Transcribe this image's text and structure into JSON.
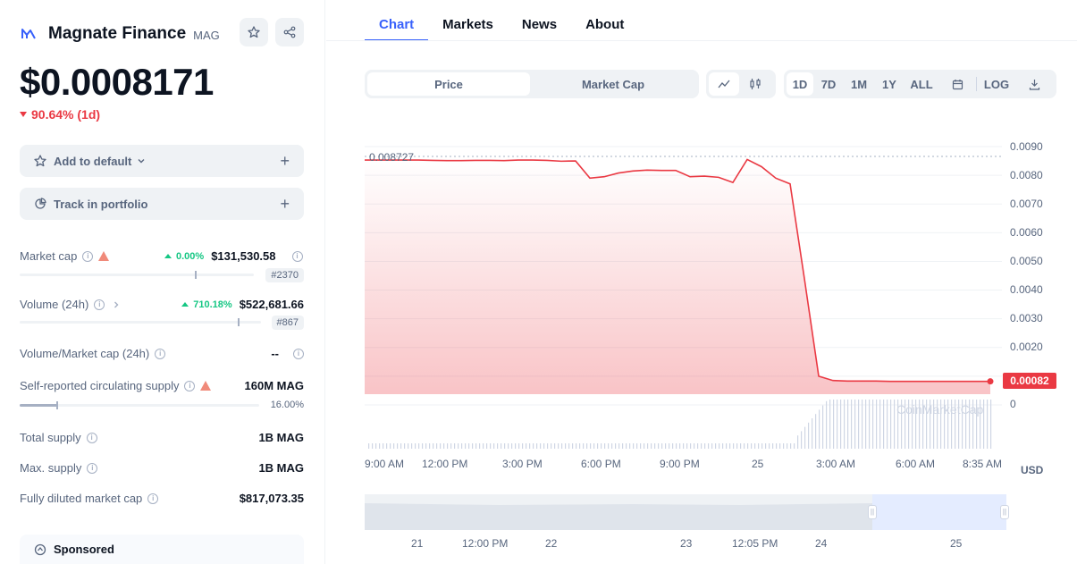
{
  "coin": {
    "name": "Magnate Finance",
    "symbol": "MAG",
    "price": "$0.0008171",
    "change": "90.64% (1d)"
  },
  "actions": {
    "add_default": "Add to default",
    "track_portfolio": "Track in portfolio"
  },
  "stats": {
    "market_cap": {
      "label": "Market cap",
      "change": "0.00%",
      "value": "$131,530.58",
      "rank": "#2370"
    },
    "volume": {
      "label": "Volume (24h)",
      "change": "710.18%",
      "value": "$522,681.66",
      "rank": "#867"
    },
    "vol_mcap": {
      "label": "Volume/Market cap (24h)",
      "value": "--"
    },
    "circ_supply": {
      "label": "Self-reported circulating supply",
      "value": "160M MAG",
      "percent": "16.00%"
    },
    "total_supply": {
      "label": "Total supply",
      "value": "1B MAG"
    },
    "max_supply": {
      "label": "Max. supply",
      "value": "1B MAG"
    },
    "fdmc": {
      "label": "Fully diluted market cap",
      "value": "$817,073.35"
    }
  },
  "sponsored": "Sponsored",
  "tabs": [
    "Chart",
    "Markets",
    "News",
    "About"
  ],
  "chart_controls": {
    "type_toggle": [
      "Price",
      "Market Cap"
    ],
    "ranges": [
      "1D",
      "7D",
      "1M",
      "1Y",
      "ALL"
    ],
    "log": "LOG"
  },
  "chart_data": {
    "type": "area",
    "series": [
      {
        "values": [
          0.00853,
          0.00852,
          0.00851,
          0.00851,
          0.00852,
          0.00852,
          0.00851,
          0.00853,
          0.00853,
          0.00852,
          0.00849,
          0.0085,
          0.0079,
          0.00795,
          0.00808,
          0.00815,
          0.00818,
          0.00817,
          0.00817,
          0.00795,
          0.00797,
          0.00793,
          0.00775,
          0.00855,
          0.0083,
          0.0079,
          0.0077,
          0.0044,
          0.001,
          0.00085,
          0.00083,
          0.00083,
          0.00083,
          0.00082,
          0.00082,
          0.00082,
          0.00082,
          0.00082,
          0.00082,
          0.00082,
          0.00082
        ]
      }
    ],
    "y_ticks": [
      "0.0090",
      "0.0080",
      "0.0070",
      "0.0060",
      "0.0050",
      "0.0040",
      "0.0030",
      "0.0020",
      "0"
    ],
    "ylim": [
      0,
      0.0095
    ],
    "x_ticks": [
      "9:00 AM",
      "12:00 PM",
      "3:00 PM",
      "6:00 PM",
      "9:00 PM",
      "25",
      "3:00 AM",
      "6:00 AM",
      "8:35 AM"
    ],
    "high_label": "0.008727",
    "current_label": "0.00082",
    "currency": "USD",
    "watermark": "CoinMarketCap"
  },
  "navigator": {
    "labels": [
      "21",
      "12:00 PM",
      "22",
      "23",
      "12:05 PM",
      "24",
      "25"
    ]
  },
  "colors": {
    "accent": "#3861fb",
    "down": "#ea3943",
    "up": "#16c784"
  }
}
